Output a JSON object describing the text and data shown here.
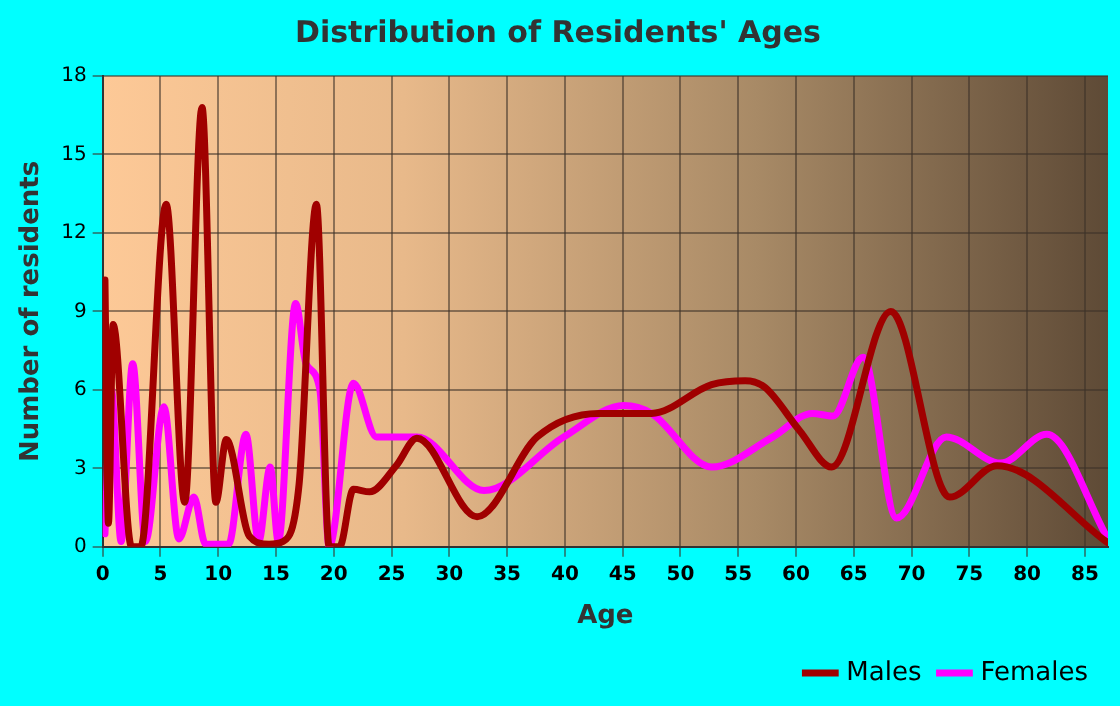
{
  "chart_data": {
    "type": "line",
    "title": "Distribution of Residents' Ages",
    "xlabel": "Age",
    "ylabel": "Number of residents",
    "xlim": [
      0,
      87
    ],
    "xticks": [
      0,
      5,
      10,
      15,
      20,
      25,
      30,
      35,
      40,
      45,
      50,
      55,
      60,
      65,
      70,
      75,
      80,
      85
    ],
    "ylim": [
      0,
      18
    ],
    "yticks": [
      0,
      3,
      6,
      9,
      12,
      15,
      18
    ],
    "grid": true,
    "legend": "bottom right",
    "marker": "none",
    "line_style": "solid",
    "series": [
      {
        "name": "Males",
        "color": "#a00000",
        "x": [
          0.2,
          0.5,
          0.9,
          2.5,
          3.3,
          5.5,
          7.1,
          8.6,
          9.8,
          10.7,
          12.7,
          14.4,
          15.6,
          17,
          18.5,
          19.6,
          20.5,
          21.7,
          23.1,
          25.4,
          27.2,
          32.4,
          37.6,
          42.9,
          47.5,
          52.7,
          55.6,
          57.3,
          60.3,
          63.1,
          68.2,
          73.3,
          77.4,
          87
        ],
        "values": [
          10.2,
          0.9,
          8.5,
          0,
          0,
          13.1,
          1.7,
          16.8,
          1.7,
          4.1,
          0.4,
          0.1,
          0.2,
          2.4,
          13.1,
          0,
          0,
          2.2,
          2.1,
          3.1,
          4.15,
          1.15,
          4.2,
          5.1,
          5.1,
          6.2,
          6.35,
          6.1,
          4.45,
          3.05,
          9,
          1.9,
          3.1,
          0.15
        ]
      },
      {
        "name": "Females",
        "color": "#ff00ff",
        "x": [
          0.2,
          0.75,
          1.6,
          2.6,
          3.7,
          5.3,
          6.6,
          7.9,
          8.9,
          10.9,
          12.4,
          13.5,
          14.5,
          15.2,
          16.7,
          17.6,
          18.8,
          19.6,
          21.7,
          23.7,
          27.2,
          33,
          39.9,
          45.1,
          47.5,
          52.7,
          58,
          61.4,
          63.2,
          65.8,
          68.7,
          73,
          77.7,
          81.7,
          87
        ],
        "values": [
          0.5,
          6,
          0.2,
          7,
          0.2,
          5.35,
          0.3,
          1.9,
          0.1,
          0.1,
          4.3,
          0.2,
          3.05,
          0.2,
          9.3,
          7,
          6,
          0,
          6.25,
          4.2,
          4.2,
          2.15,
          4.2,
          5.4,
          5.1,
          3.05,
          4.2,
          5.1,
          5,
          7.25,
          1.1,
          4.2,
          3.2,
          4.3,
          0.3
        ]
      }
    ]
  }
}
